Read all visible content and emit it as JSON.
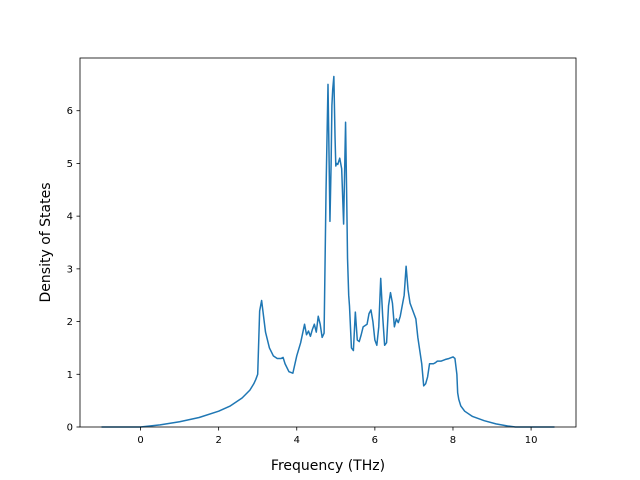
{
  "chart_data": {
    "type": "line",
    "title": "",
    "xlabel": "Frequency (THz)",
    "ylabel": "Density of States",
    "xlim": [
      -1.55,
      11.15
    ],
    "ylim": [
      0,
      7
    ],
    "xticks": [
      0,
      2,
      4,
      6,
      8,
      10
    ],
    "yticks": [
      0,
      1,
      2,
      3,
      4,
      5,
      6
    ],
    "grid": false,
    "legend": "none",
    "series": [
      {
        "color": "#1f77b4",
        "x": [
          -1.0,
          -0.5,
          0.0,
          0.5,
          1.0,
          1.5,
          2.0,
          2.3,
          2.6,
          2.8,
          2.9,
          2.95,
          3.0,
          3.05,
          3.1,
          3.2,
          3.3,
          3.4,
          3.5,
          3.6,
          3.65,
          3.7,
          3.8,
          3.9,
          4.0,
          4.1,
          4.2,
          4.25,
          4.3,
          4.35,
          4.4,
          4.45,
          4.5,
          4.55,
          4.6,
          4.65,
          4.7,
          4.75,
          4.8,
          4.82,
          4.85,
          4.88,
          4.9,
          4.92,
          4.95,
          4.98,
          5.0,
          5.02,
          5.05,
          5.1,
          5.15,
          5.2,
          5.25,
          5.28,
          5.3,
          5.33,
          5.35,
          5.4,
          5.45,
          5.5,
          5.55,
          5.6,
          5.65,
          5.7,
          5.8,
          5.85,
          5.9,
          5.95,
          6.0,
          6.05,
          6.1,
          6.15,
          6.2,
          6.25,
          6.3,
          6.35,
          6.4,
          6.45,
          6.5,
          6.55,
          6.6,
          6.65,
          6.7,
          6.75,
          6.8,
          6.85,
          6.9,
          6.95,
          7.0,
          7.05,
          7.1,
          7.15,
          7.2,
          7.25,
          7.3,
          7.35,
          7.4,
          7.45,
          7.5,
          7.55,
          7.6,
          7.7,
          7.8,
          7.9,
          8.0,
          8.05,
          8.1,
          8.12,
          8.15,
          8.2,
          8.3,
          8.5,
          8.8,
          9.1,
          9.4,
          9.6,
          9.7,
          10.0,
          10.6
        ],
        "y": [
          0,
          0,
          0,
          0.04,
          0.1,
          0.18,
          0.3,
          0.4,
          0.55,
          0.7,
          0.82,
          0.9,
          1.0,
          2.2,
          2.4,
          1.8,
          1.5,
          1.35,
          1.3,
          1.3,
          1.32,
          1.2,
          1.05,
          1.02,
          1.35,
          1.6,
          1.95,
          1.75,
          1.82,
          1.72,
          1.85,
          1.95,
          1.8,
          2.1,
          1.95,
          1.7,
          1.78,
          4.5,
          6.5,
          5.5,
          3.9,
          5.0,
          6.1,
          6.4,
          6.65,
          5.5,
          4.95,
          5.0,
          4.98,
          5.1,
          4.9,
          3.85,
          5.78,
          4.3,
          3.2,
          2.5,
          2.3,
          1.5,
          1.45,
          2.18,
          1.65,
          1.62,
          1.75,
          1.9,
          1.95,
          2.15,
          2.22,
          2.0,
          1.65,
          1.55,
          1.9,
          2.82,
          2.1,
          1.55,
          1.6,
          2.3,
          2.55,
          2.35,
          1.9,
          2.05,
          1.98,
          2.1,
          2.3,
          2.5,
          3.05,
          2.6,
          2.35,
          2.25,
          2.15,
          2.05,
          1.7,
          1.45,
          1.2,
          0.78,
          0.82,
          0.95,
          1.2,
          1.2,
          1.2,
          1.22,
          1.25,
          1.25,
          1.28,
          1.3,
          1.33,
          1.3,
          1.0,
          0.65,
          0.52,
          0.4,
          0.3,
          0.2,
          0.12,
          0.06,
          0.02,
          0,
          0,
          0,
          0
        ]
      }
    ]
  }
}
